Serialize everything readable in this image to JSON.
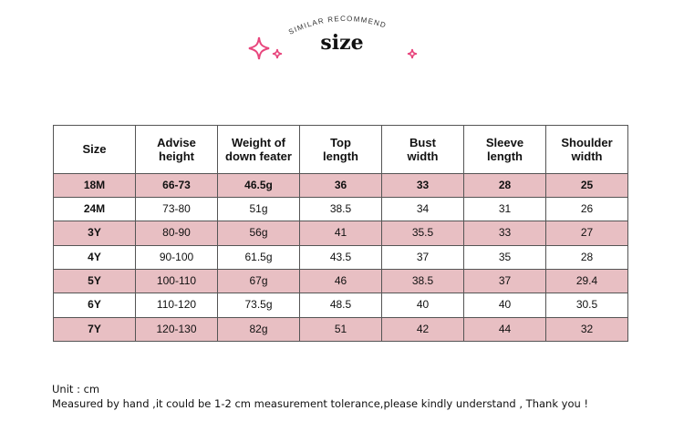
{
  "header": {
    "arc_label": "SIMILAR   RECOMMEND",
    "title": "size",
    "sparkle_color": "#e8467d"
  },
  "table": {
    "columns": [
      [
        "Size"
      ],
      [
        "Advise",
        "height"
      ],
      [
        "Weight of",
        "down feater"
      ],
      [
        "Top",
        "length"
      ],
      [
        "Bust",
        "width"
      ],
      [
        "Sleeve",
        "length"
      ],
      [
        "Shoulder",
        "width"
      ]
    ],
    "rows": [
      [
        "18M",
        "66-73",
        "46.5g",
        "36",
        "33",
        "28",
        "25"
      ],
      [
        "24M",
        "73-80",
        "51g",
        "38.5",
        "34",
        "31",
        "26"
      ],
      [
        "3Y",
        "80-90",
        "56g",
        "41",
        "35.5",
        "33",
        "27"
      ],
      [
        "4Y",
        "90-100",
        "61.5g",
        "43.5",
        "37",
        "35",
        "28"
      ],
      [
        "5Y",
        "100-110",
        "67g",
        "46",
        "38.5",
        "37",
        "29.4"
      ],
      [
        "6Y",
        "110-120",
        "73.5g",
        "48.5",
        "40",
        "40",
        "30.5"
      ],
      [
        "7Y",
        "120-130",
        "82g",
        "51",
        "42",
        "44",
        "32"
      ]
    ],
    "pink_color": "#e8bfc3"
  },
  "notes": {
    "unit": "Unit : cm",
    "measure": "Measured by hand ,it could be 1-2 cm measurement tolerance,please kindly understand , Thank you !"
  }
}
